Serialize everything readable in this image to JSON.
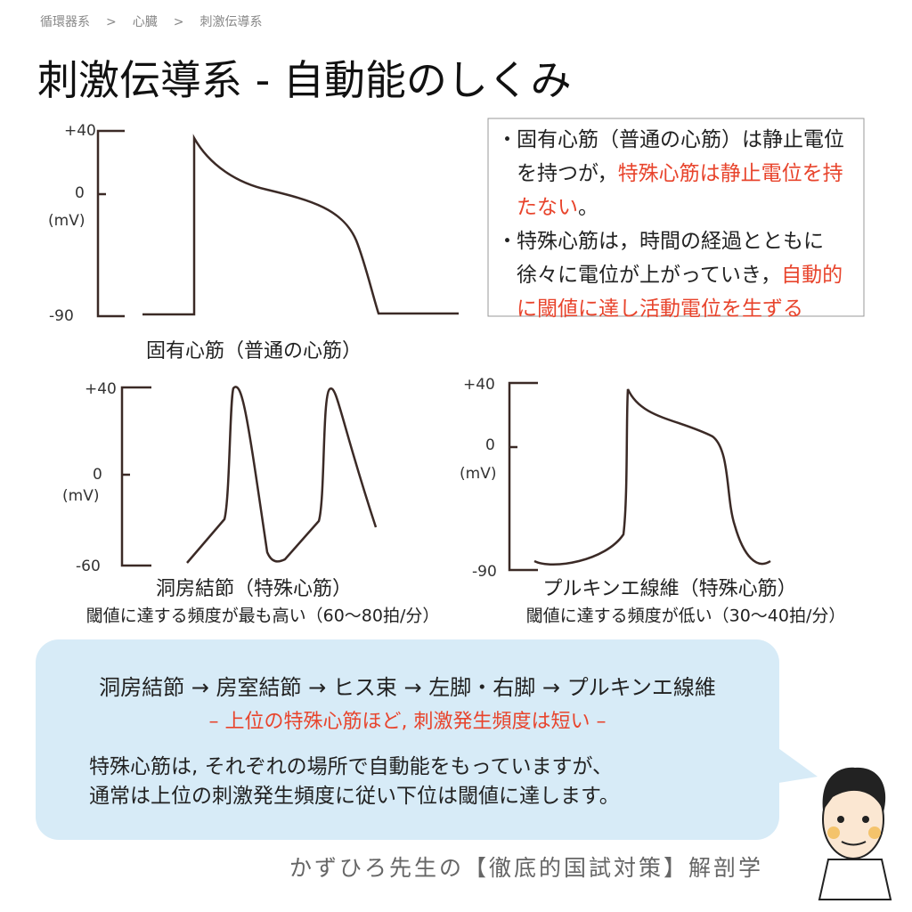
{
  "breadcrumb": {
    "items": [
      "循環器系",
      "心臓",
      "刺激伝導系"
    ],
    "separator": ">"
  },
  "title": "刺激伝導系 - 自動能のしくみ",
  "charts": [
    {
      "yticks": [
        "+40",
        "0",
        "-90"
      ],
      "ylabel": "(mV)",
      "caption": "固有心筋（普通の心筋）"
    },
    {
      "yticks": [
        "+40",
        "0",
        "-60"
      ],
      "ylabel": "(mV)",
      "caption": "洞房結節（特殊心筋）",
      "note": "閾値に達する頻度が最も高い（60〜80拍/分）"
    },
    {
      "yticks": [
        "+40",
        "0",
        "-90"
      ],
      "ylabel": "(mV)",
      "caption": "プルキンエ線維（特殊心筋）",
      "note": "閾値に達する頻度が低い（30〜40拍/分）"
    }
  ],
  "notes": {
    "bullet": "・",
    "items": [
      [
        {
          "text": "固有心筋（普通の心筋）は静止電位を持つが，",
          "highlight": false
        },
        {
          "text": "特殊心筋は静止電位を持たない",
          "highlight": true
        },
        {
          "text": "。",
          "highlight": false
        }
      ],
      [
        {
          "text": "特殊心筋は，時間の経過とともに徐々に電位が上がっていき，",
          "highlight": false
        },
        {
          "text": "自動的に閾値に達し活動電位を生ずる",
          "highlight": true
        }
      ]
    ]
  },
  "summary": {
    "flow": "洞房結節 → 房室結節 → ヒス束 → 左脚・右脚 → プルキンエ線維",
    "subtitle": "– 上位の特殊心筋ほど, 刺激発生頻度は短い –",
    "lines": [
      "特殊心筋は, それぞれの場所で自動能をもっていますが、",
      "通常は上位の刺激発生頻度に従い下位は閾値に達します。"
    ]
  },
  "footer": "かずひろ先生の【徹底的国試対策】解剖学"
}
